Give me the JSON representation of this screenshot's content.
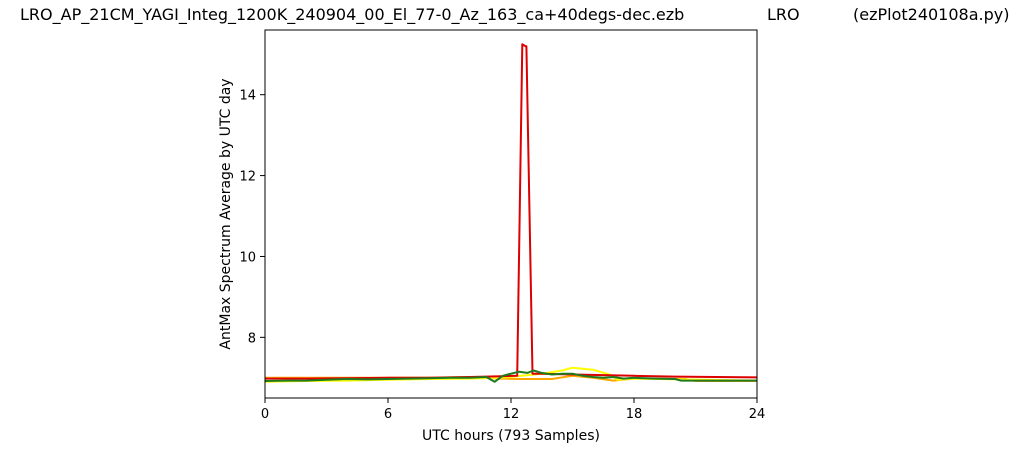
{
  "header": {
    "file": "LRO_AP_21CM_YAGI_Integ_1200K_240904_00_El_77-0_Az_163_ca+40degs-dec.ezb",
    "site": "LRO",
    "program": "(ezPlot240108a.py)"
  },
  "chart_data": {
    "type": "line",
    "xlabel": "UTC hours  (793 Samples)",
    "ylabel": "AntMax Spectrum Average by UTC day",
    "xlim": [
      0,
      24
    ],
    "ylim": [
      6.5,
      15.6
    ],
    "xticks": [
      0,
      6,
      12,
      18,
      24
    ],
    "xtick_labels": [
      "0",
      "6",
      "12",
      "18",
      "24"
    ],
    "yticks": [
      8,
      10,
      12,
      14
    ],
    "ytick_labels": [
      "8",
      "10",
      "12",
      "14"
    ],
    "grid": false,
    "series": [
      {
        "color": "#ffa500",
        "x": [
          0,
          2,
          4,
          6,
          8,
          10,
          11.5,
          12.3,
          13.0,
          14.0,
          15.0,
          16.0,
          17.0,
          18.0,
          20.5,
          21.0,
          22.0,
          24.0
        ],
        "y": [
          7.0,
          7.0,
          7.0,
          7.0,
          7.0,
          7.02,
          6.98,
          6.97,
          6.97,
          6.97,
          7.05,
          7.0,
          6.93,
          6.98,
          6.97,
          6.92,
          6.92,
          6.92
        ]
      },
      {
        "color": "#ffff00",
        "x": [
          0,
          2,
          4,
          6,
          8,
          10,
          11.5,
          12.5,
          13.5,
          14.5,
          15.0,
          16.0,
          16.8,
          17.2,
          18.0,
          24.0
        ],
        "y": [
          6.9,
          6.92,
          6.93,
          6.95,
          6.97,
          6.98,
          7.0,
          7.05,
          7.1,
          7.18,
          7.25,
          7.2,
          7.08,
          6.95,
          6.98,
          6.93
        ]
      },
      {
        "color": "#dd0000",
        "x": [
          0,
          2,
          4,
          6,
          8,
          10,
          11.5,
          12.3,
          12.55,
          12.7,
          12.75,
          13.05,
          13.2,
          13.5,
          15.0,
          18.0,
          20.0,
          22.0,
          24.0
        ],
        "y": [
          6.98,
          6.98,
          6.99,
          7.0,
          7.0,
          7.02,
          7.04,
          7.05,
          15.25,
          15.2,
          15.2,
          7.1,
          7.1,
          7.1,
          7.08,
          7.05,
          7.03,
          7.02,
          7.01
        ]
      },
      {
        "color": "#1f7a1f",
        "x": [
          0,
          1,
          2,
          3,
          4,
          5,
          6,
          7,
          8,
          9,
          10,
          10.8,
          11.2,
          11.6,
          12.0,
          12.4,
          12.8,
          13.1,
          13.5,
          14.0,
          14.5,
          15.0,
          15.5,
          16.0,
          16.5,
          17.0,
          17.5,
          18.0,
          19.0,
          20.0,
          20.3,
          21.0,
          22.0,
          23.0,
          24.0
        ],
        "y": [
          6.92,
          6.93,
          6.93,
          6.95,
          6.97,
          6.96,
          6.97,
          6.98,
          6.99,
          7.0,
          7.0,
          7.02,
          6.9,
          7.05,
          7.1,
          7.15,
          7.12,
          7.18,
          7.12,
          7.08,
          7.1,
          7.1,
          7.05,
          7.02,
          7.0,
          7.02,
          6.98,
          7.0,
          6.98,
          6.97,
          6.93,
          6.93,
          6.93,
          6.93,
          6.93
        ]
      }
    ]
  }
}
